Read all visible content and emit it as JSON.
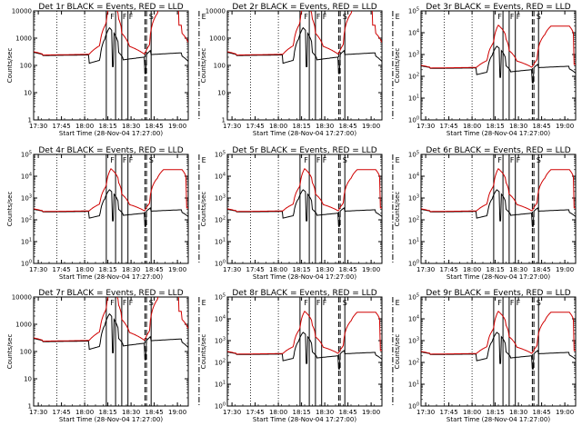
{
  "window": {
    "title": "RHESSI detector livetime plots"
  },
  "chart_data": [
    {
      "type": "line",
      "title": "Det 1r BLACK = Events, RED = LLD",
      "xlabel": "Start Time (28-Nov-04 17:27:00)",
      "ylabel": "Counts/sec",
      "y_scale": "log",
      "y_tick_style": "plain",
      "ylim": [
        1,
        10000
      ],
      "x_ticks": [
        "17:30",
        "17:45",
        "18:00",
        "18:15",
        "18:30",
        "18:45",
        "19:00"
      ],
      "y_ticks": [
        "1",
        "10",
        "100",
        "1000",
        "10000"
      ],
      "marker_labels": [
        "F",
        "F",
        "F",
        "S",
        "E"
      ],
      "series": [
        {
          "name": "BLACK",
          "color": "#000000"
        },
        {
          "name": "RED",
          "color": "#d00000"
        }
      ],
      "red_plateau": null
    },
    {
      "type": "line",
      "title": "Det 2r BLACK = Events, RED = LLD",
      "xlabel": "Start Time (28-Nov-04 17:27:00)",
      "ylabel": "Counts/sec",
      "y_scale": "log",
      "y_tick_style": "plain",
      "ylim": [
        1,
        10000
      ],
      "x_ticks": [
        "17:30",
        "17:45",
        "18:00",
        "18:15",
        "18:30",
        "18:45",
        "19:00"
      ],
      "y_ticks": [
        "1",
        "10",
        "100",
        "1000",
        "10000"
      ],
      "marker_labels": [
        "F",
        "F",
        "F",
        "S",
        "E"
      ],
      "series": [
        {
          "name": "BLACK",
          "color": "#000000"
        },
        {
          "name": "RED",
          "color": "#d00000"
        }
      ],
      "red_plateau": null
    },
    {
      "type": "line",
      "title": "Det 3r BLACK = Events, RED = LLD",
      "xlabel": "Start Time (28-Nov-04 17:27:00)",
      "ylabel": "Counts/sec",
      "y_scale": "log",
      "y_tick_style": "exp",
      "ylim": [
        1,
        100000
      ],
      "x_ticks": [
        "17:30",
        "17:45",
        "18:00",
        "18:15",
        "18:30",
        "18:45",
        "19:00"
      ],
      "y_ticks": [
        "1",
        "10",
        "100",
        "1000",
        "10000",
        "100000"
      ],
      "marker_labels": [
        "F",
        "F",
        "F",
        "S",
        "E"
      ],
      "series": [
        {
          "name": "BLACK",
          "color": "#000000"
        },
        {
          "name": "RED",
          "color": "#d00000"
        }
      ],
      "red_plateau": 20000
    },
    {
      "type": "line",
      "title": "Det 4r BLACK = Events, RED = LLD",
      "xlabel": "Start Time (28-Nov-04 17:27:00)",
      "ylabel": "Counts/sec",
      "y_scale": "log",
      "y_tick_style": "exp",
      "ylim": [
        1,
        100000
      ],
      "x_ticks": [
        "17:30",
        "17:45",
        "18:00",
        "18:15",
        "18:30",
        "18:45",
        "19:00"
      ],
      "y_ticks": [
        "1",
        "10",
        "100",
        "1000",
        "10000",
        "100000"
      ],
      "marker_labels": [
        "F",
        "F",
        "F",
        "S",
        "E"
      ],
      "series": [
        {
          "name": "BLACK",
          "color": "#000000"
        },
        {
          "name": "RED",
          "color": "#d00000"
        }
      ],
      "red_plateau": 20000
    },
    {
      "type": "line",
      "title": "Det 5r BLACK = Events, RED = LLD",
      "xlabel": "Start Time (28-Nov-04 17:27:00)",
      "ylabel": "Counts/sec",
      "y_scale": "log",
      "y_tick_style": "exp",
      "ylim": [
        1,
        100000
      ],
      "x_ticks": [
        "17:30",
        "17:45",
        "18:00",
        "18:15",
        "18:30",
        "18:45",
        "19:00"
      ],
      "y_ticks": [
        "1",
        "10",
        "100",
        "1000",
        "10000",
        "100000"
      ],
      "marker_labels": [
        "F",
        "F",
        "F",
        "S",
        "E"
      ],
      "series": [
        {
          "name": "BLACK",
          "color": "#000000"
        },
        {
          "name": "RED",
          "color": "#d00000"
        }
      ],
      "red_plateau": 20000
    },
    {
      "type": "line",
      "title": "Det 6r BLACK = Events, RED = LLD",
      "xlabel": "Start Time (28-Nov-04 17:27:00)",
      "ylabel": "Counts/sec",
      "y_scale": "log",
      "y_tick_style": "exp",
      "ylim": [
        1,
        100000
      ],
      "x_ticks": [
        "17:30",
        "17:45",
        "18:00",
        "18:15",
        "18:30",
        "18:45",
        "19:00"
      ],
      "y_ticks": [
        "1",
        "10",
        "100",
        "1000",
        "10000",
        "100000"
      ],
      "marker_labels": [
        "F",
        "F",
        "F",
        "S",
        "E"
      ],
      "series": [
        {
          "name": "BLACK",
          "color": "#000000"
        },
        {
          "name": "RED",
          "color": "#d00000"
        }
      ],
      "red_plateau": 20000
    },
    {
      "type": "line",
      "title": "Det 7r BLACK = Events, RED = LLD",
      "xlabel": "Start Time (28-Nov-04 17:27:00)",
      "ylabel": "Counts/sec",
      "y_scale": "log",
      "y_tick_style": "plain",
      "ylim": [
        1,
        10000
      ],
      "x_ticks": [
        "17:30",
        "17:45",
        "18:00",
        "18:15",
        "18:30",
        "18:45",
        "19:00"
      ],
      "y_ticks": [
        "1",
        "10",
        "100",
        "1000",
        "10000"
      ],
      "marker_labels": [
        "F",
        "F",
        "F",
        "S",
        "E"
      ],
      "series": [
        {
          "name": "BLACK",
          "color": "#000000"
        },
        {
          "name": "RED",
          "color": "#d00000"
        }
      ],
      "red_plateau": null
    },
    {
      "type": "line",
      "title": "Det 8r BLACK = Events, RED = LLD",
      "xlabel": "Start Time (28-Nov-04 17:27:00)",
      "ylabel": "Counts/sec",
      "y_scale": "log",
      "y_tick_style": "exp",
      "ylim": [
        1,
        100000
      ],
      "x_ticks": [
        "17:30",
        "17:45",
        "18:00",
        "18:15",
        "18:30",
        "18:45",
        "19:00"
      ],
      "y_ticks": [
        "1",
        "10",
        "100",
        "1000",
        "10000",
        "100000"
      ],
      "marker_labels": [
        "F",
        "F",
        "F",
        "S",
        "E"
      ],
      "series": [
        {
          "name": "BLACK",
          "color": "#000000"
        },
        {
          "name": "RED",
          "color": "#d00000"
        }
      ],
      "red_plateau": 20000
    },
    {
      "type": "line",
      "title": "Det 9r BLACK = Events, RED = LLD",
      "xlabel": "Start Time (28-Nov-04 17:27:00)",
      "ylabel": "Counts/sec",
      "y_scale": "log",
      "y_tick_style": "exp",
      "ylim": [
        1,
        100000
      ],
      "x_ticks": [
        "17:30",
        "17:45",
        "18:00",
        "18:15",
        "18:30",
        "18:45",
        "19:00"
      ],
      "y_ticks": [
        "1",
        "10",
        "100",
        "1000",
        "10000",
        "100000"
      ],
      "marker_labels": [
        "F",
        "F",
        "F",
        "S",
        "E"
      ],
      "series": [
        {
          "name": "BLACK",
          "color": "#000000"
        },
        {
          "name": "RED",
          "color": "#d00000"
        }
      ],
      "red_plateau": 20000
    }
  ]
}
